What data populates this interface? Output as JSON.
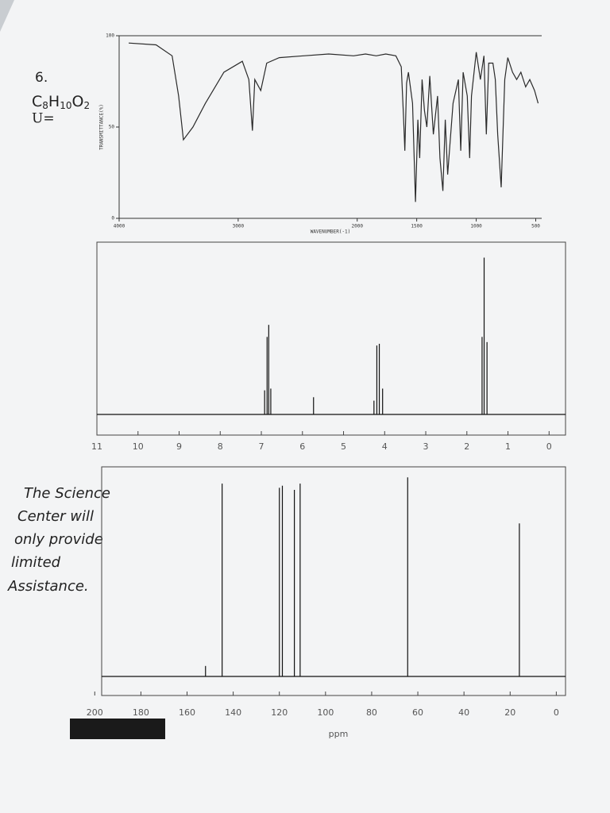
{
  "question": {
    "number": "6.",
    "formula": [
      "C",
      "8",
      "H",
      "10",
      "O",
      "2"
    ],
    "unsaturation": "U="
  },
  "note": [
    "The Science",
    "Center will",
    "only provide",
    "limited",
    "Assistance."
  ],
  "chart_data": [
    {
      "type": "line",
      "x_label": "WAVENUMBER(-1)",
      "y_label": "TRANSMITTANCE(%)",
      "x": [
        3920,
        3690,
        3555,
        3500,
        3460,
        3380,
        3275,
        3120,
        2965,
        2910,
        2880,
        2860,
        2810,
        2760,
        2655,
        2450,
        2240,
        2030,
        1930,
        1840,
        1760,
        1675,
        1630,
        1610,
        1600,
        1585,
        1570,
        1535,
        1510,
        1490,
        1475,
        1455,
        1435,
        1415,
        1390,
        1360,
        1325,
        1305,
        1280,
        1260,
        1240,
        1195,
        1150,
        1130,
        1110,
        1075,
        1055,
        1040,
        1000,
        965,
        935,
        915,
        895,
        860,
        840,
        820,
        790,
        760,
        735,
        695,
        660,
        625,
        585,
        550,
        510,
        480
      ],
      "values": [
        96,
        95,
        89,
        67,
        43,
        50,
        63,
        80,
        86,
        76,
        48,
        76,
        70,
        85,
        88,
        89,
        90,
        89,
        90,
        89,
        90,
        89,
        83,
        54,
        37,
        74,
        80,
        63,
        9,
        54,
        33,
        76,
        59,
        50,
        78,
        46,
        67,
        33,
        15,
        54,
        24,
        63,
        76,
        37,
        80,
        67,
        33,
        67,
        91,
        76,
        89,
        46,
        85,
        85,
        76,
        46,
        17,
        76,
        88,
        80,
        76,
        80,
        72,
        76,
        70,
        63
      ],
      "color": "#2a2a2a",
      "xlim": [
        4000,
        450
      ],
      "xticks": [
        4000,
        3000,
        2000,
        1500,
        1000,
        500
      ],
      "ylim": [
        0,
        100
      ],
      "yticks": [
        0,
        50,
        100
      ]
    },
    {
      "type": "stick",
      "x": [
        6.92,
        6.86,
        6.82,
        6.77,
        5.73,
        4.26,
        4.19,
        4.13,
        4.05,
        1.63,
        1.58,
        1.51
      ],
      "values": [
        14,
        45,
        52,
        15,
        10,
        8,
        40,
        41,
        15,
        45,
        91,
        42
      ],
      "color": "#111111",
      "xlim": [
        11,
        -0.4
      ],
      "xticks": [
        11,
        10,
        9,
        8,
        7,
        6,
        5,
        4,
        3,
        2,
        1,
        0
      ],
      "ylim": [
        0,
        100
      ]
    },
    {
      "type": "stick",
      "x_label": "ppm",
      "x": [
        152,
        144.8,
        120,
        118.7,
        113.5,
        111,
        64.4,
        16
      ],
      "values": [
        5,
        92,
        90,
        91,
        89,
        92,
        95,
        73
      ],
      "color": "#111111",
      "xlim": [
        197,
        -4
      ],
      "xticks": [
        200,
        180,
        160,
        140,
        120,
        100,
        80,
        60,
        40,
        20,
        0
      ],
      "ylim": [
        0,
        100
      ]
    }
  ]
}
